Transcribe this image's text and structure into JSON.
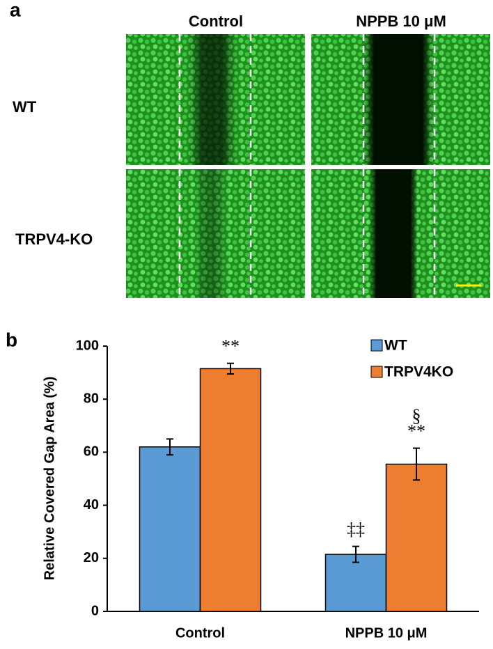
{
  "panel_a": {
    "label": "a",
    "columns": [
      "Control",
      "NPPB  10 μM"
    ],
    "rows": [
      "WT",
      "TRPV4-KO"
    ]
  },
  "chart_data": {
    "type": "bar",
    "panel_label": "b",
    "y_label": "Relative Covered Gap Area (%)",
    "categories": [
      "Control",
      "NPPB 10 μM"
    ],
    "series": [
      {
        "name": "WT",
        "color": "#5b9bd5",
        "values": [
          62,
          21.5
        ],
        "errors": [
          3,
          3
        ]
      },
      {
        "name": "TRPV4KO",
        "color": "#ed7d31",
        "values": [
          91.5,
          55.5
        ],
        "errors": [
          2,
          6
        ]
      }
    ],
    "annotations": [
      {
        "text": "**",
        "series": 1,
        "category": 0
      },
      {
        "text": "‡‡",
        "series": 0,
        "category": 1
      },
      {
        "text": "**",
        "series": 1,
        "category": 1
      },
      {
        "text": "§",
        "series": 1,
        "category": 1
      }
    ],
    "ylim": [
      0,
      100
    ],
    "yticks": [
      0,
      20,
      40,
      60,
      80,
      100
    ],
    "legend": "top-right"
  }
}
